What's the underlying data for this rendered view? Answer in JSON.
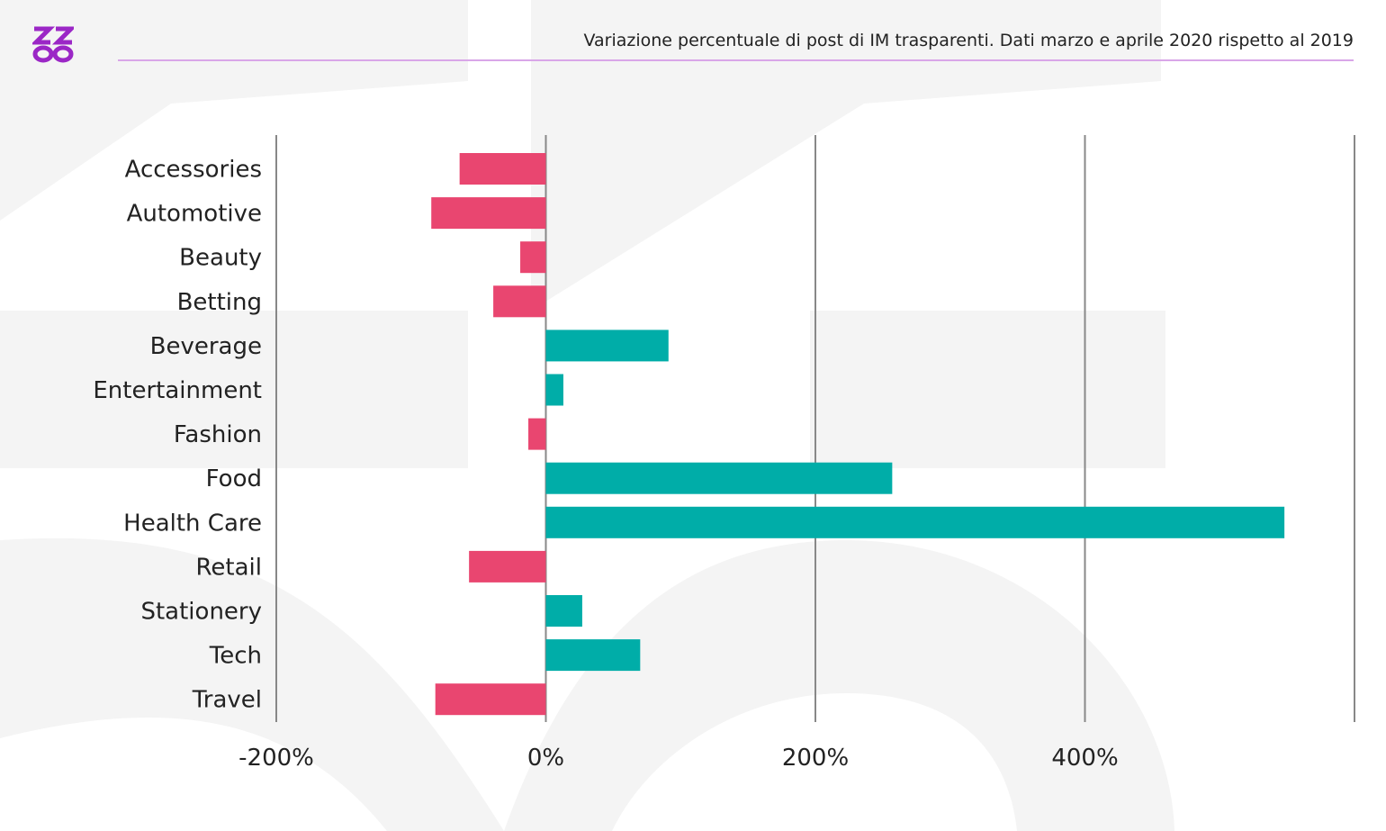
{
  "header": {
    "title": "Variazione percentuale di post di IM trasparenti. Dati marzo e aprile 2020 rispetto al 2019",
    "logo": "ZZ∞"
  },
  "colors": {
    "positive": "#00ada8",
    "negative": "#e94670",
    "brand": "#9b27c6",
    "grid": "#888888"
  },
  "chart_data": {
    "type": "bar",
    "orientation": "horizontal",
    "title": "Variazione percentuale di post di IM trasparenti. Dati marzo e aprile 2020 rispetto al 2019",
    "categories": [
      "Accessories",
      "Automotive",
      "Beauty",
      "Betting",
      "Beverage",
      "Entertainment",
      "Fashion",
      "Food",
      "Health Care",
      "Retail",
      "Stationery",
      "Tech",
      "Travel"
    ],
    "values": [
      -64,
      -85,
      -19,
      -39,
      91,
      13,
      -13,
      257,
      548,
      -57,
      27,
      70,
      -82
    ],
    "unit": "%",
    "xlim": [
      -200,
      600
    ],
    "xticks": [
      -200,
      0,
      200,
      400,
      600
    ],
    "xtick_labels": [
      "-200%",
      "0%",
      "200%",
      "400%",
      ""
    ],
    "grid": true,
    "xlabel": "",
    "ylabel": ""
  }
}
